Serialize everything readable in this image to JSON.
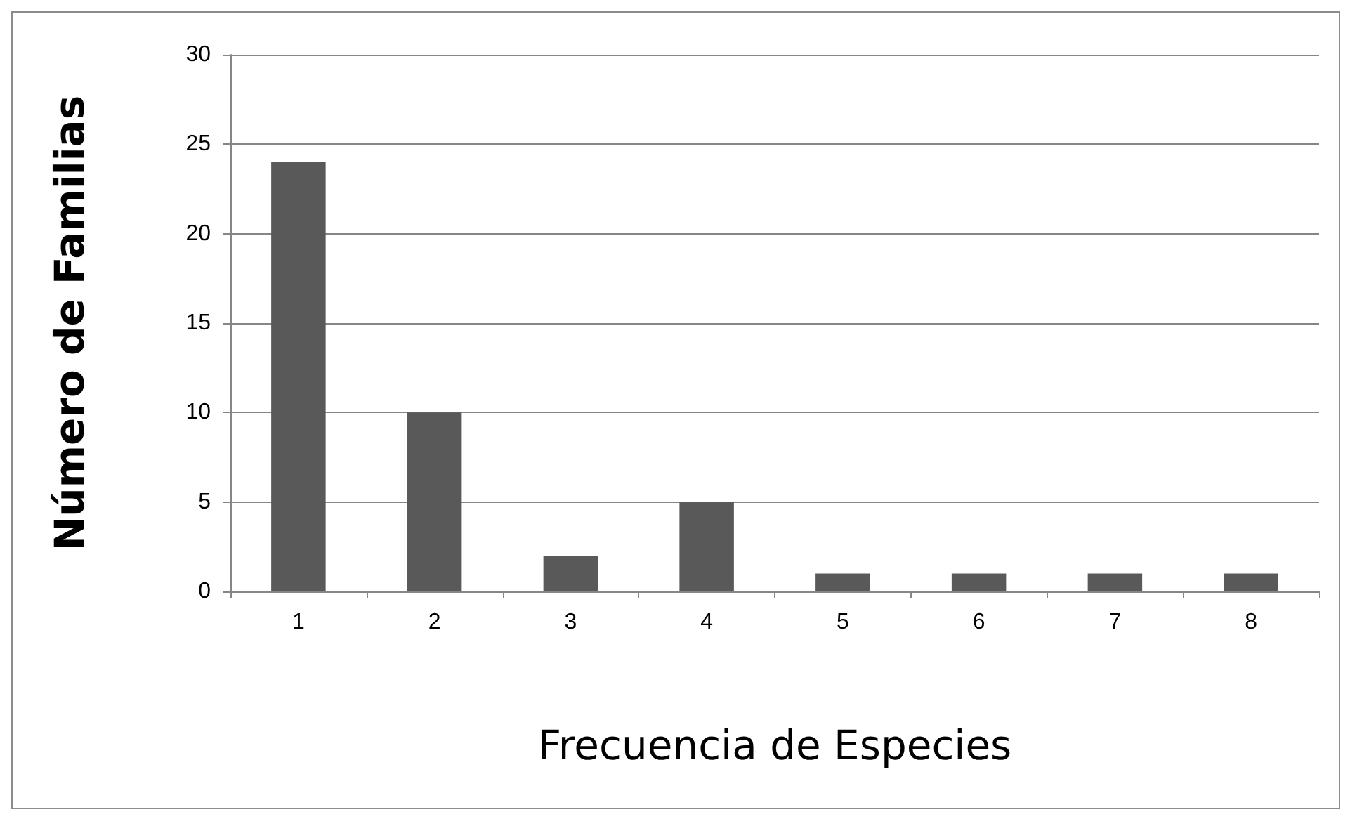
{
  "chart_data": {
    "type": "bar",
    "xlabel": "Frecuencia de Especies",
    "ylabel": "Número de Familias",
    "categories": [
      "1",
      "2",
      "3",
      "4",
      "5",
      "6",
      "7",
      "8"
    ],
    "values": [
      24,
      10,
      2,
      5,
      1,
      1,
      1,
      1
    ],
    "color": "#595959",
    "ylim": [
      0,
      30
    ],
    "yticks": [
      0,
      5,
      10,
      15,
      20,
      25,
      30
    ],
    "grid": "y"
  }
}
